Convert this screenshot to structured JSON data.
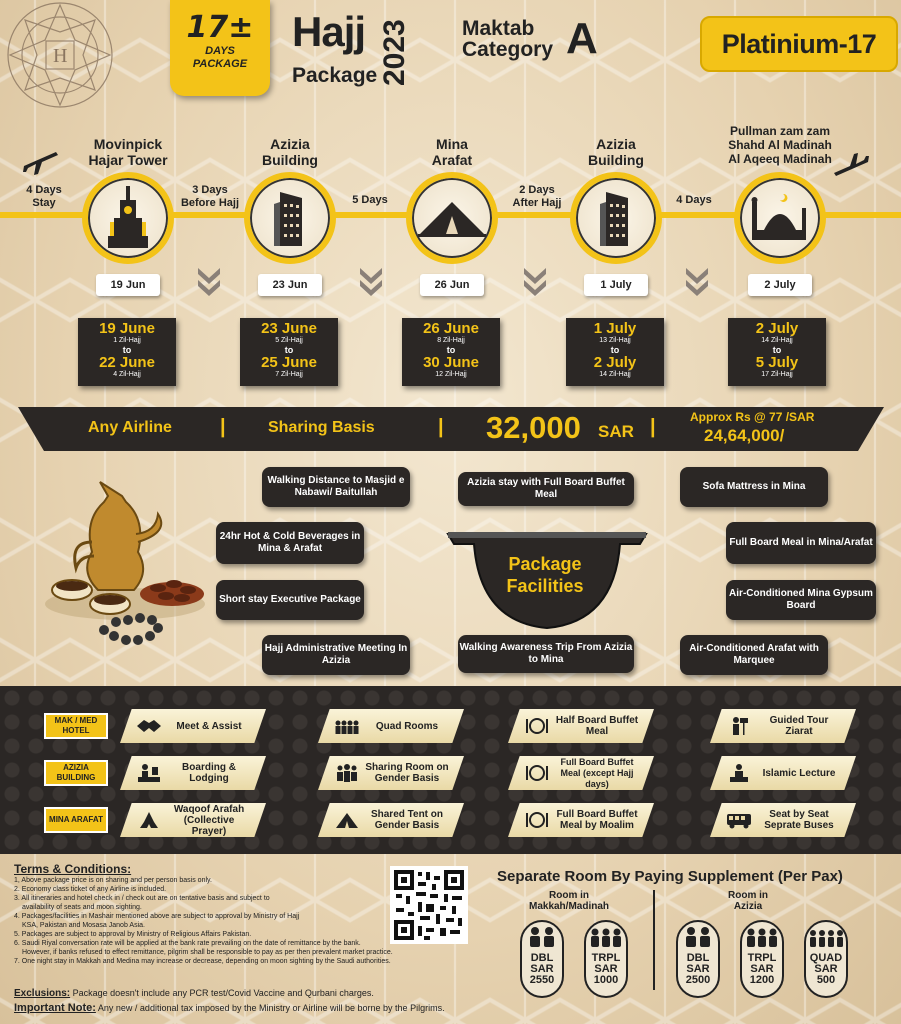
{
  "header": {
    "days_number": "17",
    "days_plusminus": "±",
    "days_line1": "DAYS",
    "days_line2": "PACKAGE",
    "title": "Hajj",
    "year": "2023",
    "subtitle": "Package",
    "maktab_line1": "Maktab",
    "maktab_line2": "Category",
    "maktab_letter": "A",
    "package_name": "Platinium-17"
  },
  "timeline": {
    "stops": [
      {
        "name_line1": "Movinpick",
        "name_line2": "Hajar Tower",
        "date": "19 Jun",
        "icon": "clock-tower-icon",
        "from": "19 June",
        "from_hijri": "1 Zil-Hajj",
        "to_word": "to",
        "until": "22 June",
        "until_hijri": "4 Zil-Hajj"
      },
      {
        "name_line1": "Azizia",
        "name_line2": "Building",
        "date": "23 Jun",
        "icon": "building-icon",
        "from": "23 June",
        "from_hijri": "5 Zil-Hajj",
        "to_word": "to",
        "until": "25 June",
        "until_hijri": "7 Zil-Hajj"
      },
      {
        "name_line1": "Mina",
        "name_line2": "Arafat",
        "date": "26 Jun",
        "icon": "tent-icon",
        "from": "26 June",
        "from_hijri": "8 Zil-Hajj",
        "to_word": "to",
        "until": "30 June",
        "until_hijri": "12 Zil-Hajj"
      },
      {
        "name_line1": "Azizia",
        "name_line2": "Building",
        "date": "1 July",
        "icon": "building-icon",
        "from": "1 July",
        "from_hijri": "13 Zil-Hajj",
        "to_word": "to",
        "until": "2 July",
        "until_hijri": "14 Zil-Hajj"
      },
      {
        "name_line1": "Pullman zam zam",
        "name_line2": "Shahd Al Madinah",
        "name_line3": "Al Aqeeq Madinah",
        "date": "2 July",
        "icon": "mosque-icon",
        "from": "2 July",
        "from_hijri": "14 Zil-Hajj",
        "to_word": "to",
        "until": "5 July",
        "until_hijri": "17 Zil-Hajj"
      }
    ],
    "connectors": [
      {
        "line1": "4 Days",
        "line2": "Stay"
      },
      {
        "line1": "3 Days",
        "line2": "Before Hajj"
      },
      {
        "line1": "5 Days",
        "line2": ""
      },
      {
        "line1": "2 Days",
        "line2": "After Hajj"
      },
      {
        "line1": "4 Days",
        "line2": ""
      }
    ]
  },
  "price_band": {
    "airline": "Any Airline",
    "sep": "|",
    "sharing": "Sharing Basis",
    "price": "32,000",
    "currency": "SAR",
    "approx": "Approx Rs @ 77 /SAR",
    "pkr": "24,64,000/"
  },
  "facilities": {
    "center_line1": "Package",
    "center_line2": "Facilities",
    "items": [
      "Walking Distance to Masjid e Nabawi/ Baitullah",
      "Azizia stay with Full Board Buffet Meal",
      "Sofa Mattress in Mina",
      "24hr Hot & Cold Beverages in Mina & Arafat",
      "Full Board Meal in Mina/Arafat",
      "Short stay Executive Package",
      "Air-Conditioned Mina Gypsum Board",
      "Hajj Administrative Meeting In Azizia",
      "Walking Awareness Trip From Azizia to Mina",
      "Air-Conditioned Arafat with Marquee"
    ]
  },
  "services": {
    "row_badges": [
      "MAK / MED HOTEL",
      "AZIZIA BUILDING",
      "MINA ARAFAT"
    ],
    "rows": [
      [
        {
          "label": "Meet & Assist",
          "icon": "handshake-icon"
        },
        {
          "label": "Quad Rooms",
          "icon": "four-people-icon"
        },
        {
          "label": "Half Board Buffet Meal",
          "icon": "plate-icon"
        },
        {
          "label": "Guided Tour Ziarat",
          "icon": "guide-icon"
        }
      ],
      [
        {
          "label": "Boarding & Lodging",
          "icon": "reception-icon"
        },
        {
          "label": "Sharing Room on Gender Basis",
          "icon": "group-icon"
        },
        {
          "label": "Full Board Buffet Meal (except Hajj days)",
          "icon": "plate-icon"
        },
        {
          "label": "Islamic Lecture",
          "icon": "lecture-icon"
        }
      ],
      [
        {
          "label": "Waqoof Arafah (Collective Prayer)",
          "icon": "praying-hands-icon"
        },
        {
          "label": "Shared Tent on Gender Basis",
          "icon": "tent-icon"
        },
        {
          "label": "Full Board Buffet Meal by Moalim",
          "icon": "plate-icon"
        },
        {
          "label": "Seat by Seat Seprate Buses",
          "icon": "bus-icon"
        }
      ]
    ]
  },
  "terms": {
    "heading": "Terms & Conditions:",
    "items": [
      "1, Above package price is on sharing and per person basis only.",
      "2. Economy class ticket of any Airline is included.",
      "3. All itineraries and hotel check in / check out are on tentative basis and subject to",
      "availability of seats and moon sighting.",
      "4. Packages/facilities in Mashair mentioned above are subject to approval by Ministry of Hajj",
      "KSA, Pakistan and Mosasa Janob Asia.",
      "5. Packages are subject to approval by Ministry of Religious Affairs Pakistan.",
      "6. Saudi Riyal conversation rate will be applied at the bank rate prevailing on the date of remittance by the bank.",
      "However, if banks refused to effect remittance, pilgrim shall be responsible to pay as per then prevalent market practice.",
      "7. One night stay in Makkah and Medina may increase or decrease, depending on moon sighting by the Saudi authorities."
    ],
    "exclusions_label": "Exclusions:",
    "exclusions_text": "Package doesn't include any PCR test/Covid Vaccine and Qurbani charges.",
    "important_label": "Important Note:",
    "important_text": "Any new / additional tax imposed by the Ministry or Airline will be borne by the Pilgrims."
  },
  "supplement": {
    "heading": "Separate Room By Paying Supplement (Per Pax)",
    "group1_title": "Room in Makkah/Madinah",
    "group2_title": "Room in Azizia",
    "rooms": [
      {
        "type": "DBL",
        "currency": "SAR",
        "price": "2550",
        "group": 1
      },
      {
        "type": "TRPL",
        "currency": "SAR",
        "price": "1000",
        "group": 1
      },
      {
        "type": "DBL",
        "currency": "SAR",
        "price": "2500",
        "group": 2
      },
      {
        "type": "TRPL",
        "currency": "SAR",
        "price": "1200",
        "group": 2
      },
      {
        "type": "QUAD",
        "currency": "SAR",
        "price": "500",
        "group": 2
      }
    ]
  },
  "colors": {
    "accent": "#f3c318",
    "dark": "#2b2725",
    "background": "#e8d7b8"
  }
}
